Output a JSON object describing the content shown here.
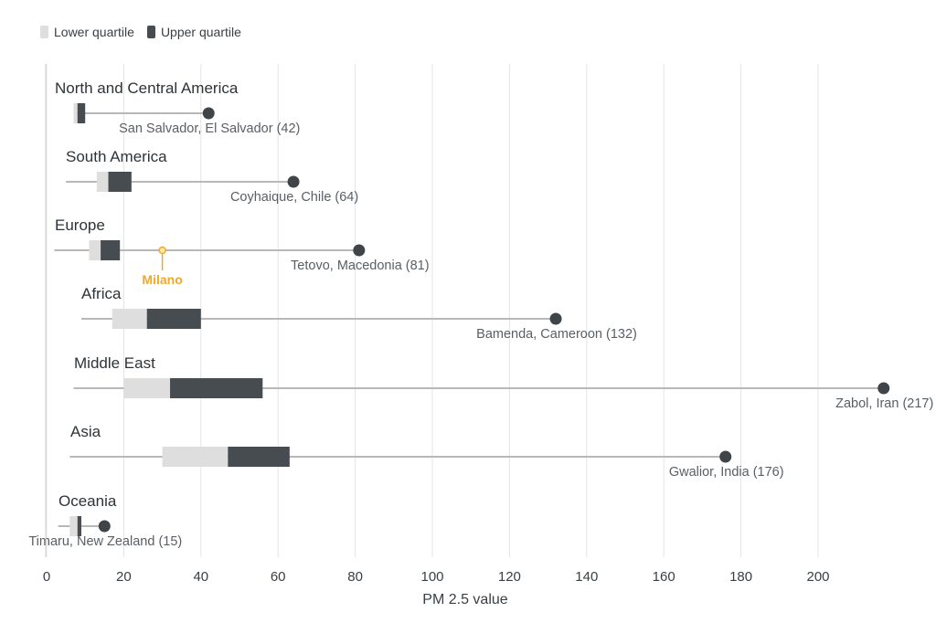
{
  "legend": {
    "lower_label": "Lower quartile",
    "upper_label": "Upper quartile",
    "lower_color": "#dedede",
    "upper_color": "#474c50"
  },
  "chart_data": {
    "type": "boxplot",
    "title": "",
    "xlabel": "PM 2.5 value",
    "ylabel": "",
    "xlim": [
      0,
      217
    ],
    "xticks": [
      0,
      20,
      40,
      60,
      80,
      100,
      120,
      140,
      160,
      180,
      200
    ],
    "grid": true,
    "legend_position": "top-left",
    "categories": [
      {
        "region": "North and Central America",
        "min": 7,
        "q1": 7,
        "median": 8,
        "q3": 10,
        "max": 42,
        "max_label": "San Salvador, El Salvador (42)"
      },
      {
        "region": "South America",
        "min": 5,
        "q1": 13,
        "median": 16,
        "q3": 22,
        "max": 64,
        "max_label": "Coyhaique, Chile (64)"
      },
      {
        "region": "Europe",
        "min": 2,
        "q1": 11,
        "median": 14,
        "q3": 19,
        "max": 81,
        "max_label": "Tetovo, Macedonia (81)"
      },
      {
        "region": "Africa",
        "min": 9,
        "q1": 17,
        "median": 26,
        "q3": 40,
        "max": 132,
        "max_label": "Bamenda, Cameroon (132)"
      },
      {
        "region": "Middle East",
        "min": 7,
        "q1": 20,
        "median": 32,
        "q3": 56,
        "max": 217,
        "max_label": "Zabol, Iran (217)"
      },
      {
        "region": "Asia",
        "min": 6,
        "q1": 30,
        "median": 47,
        "q3": 63,
        "max": 176,
        "max_label": "Gwalior, India (176)"
      },
      {
        "region": "Oceania",
        "min": 3,
        "q1": 6,
        "median": 8,
        "q3": 9,
        "max": 15,
        "max_label": "Timaru, New Zealand (15)"
      }
    ],
    "highlight": {
      "region": "Europe",
      "value": 30,
      "label": "Milano",
      "color": "#f0a92a"
    },
    "colors": {
      "whisker": "#b8b8b8",
      "lower": "#dedede",
      "upper": "#474c50",
      "max_dot": "#3f4448",
      "grid": "#e4e4e4",
      "text": "#3a3f44",
      "label": "#5a5f64"
    }
  }
}
